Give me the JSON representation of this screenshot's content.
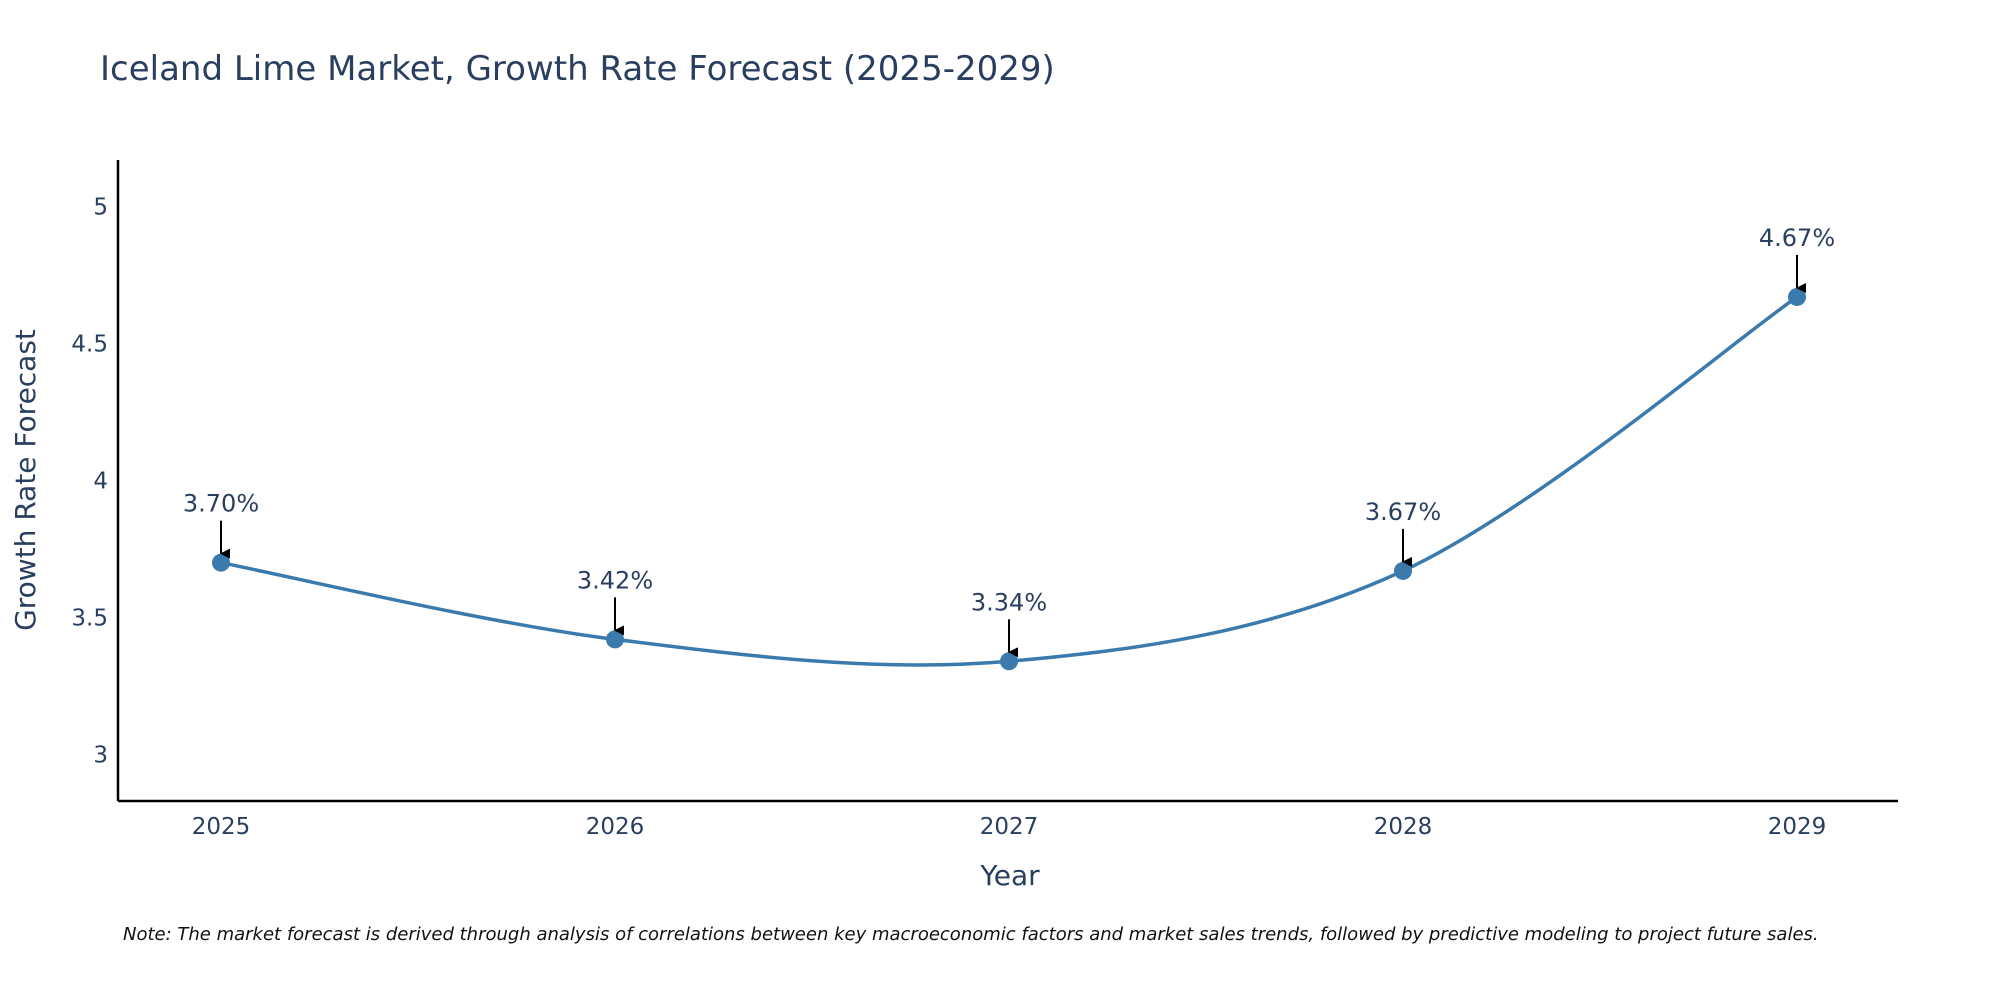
{
  "chart_data": {
    "type": "line",
    "title": "Iceland Lime Market, Growth Rate Forecast (2025-2029)",
    "xlabel": "Year",
    "ylabel": "Growth Rate Forecast",
    "categories": [
      "2025",
      "2026",
      "2027",
      "2028",
      "2029"
    ],
    "series": [
      {
        "name": "Growth Rate Forecast",
        "values": [
          3.7,
          3.42,
          3.34,
          3.67,
          4.67
        ],
        "color": "#3a7aad"
      }
    ],
    "data_labels": [
      "3.70%",
      "3.42%",
      "3.34%",
      "3.67%",
      "4.67%"
    ],
    "ylim": [
      2.83,
      5.17
    ],
    "y_ticks": [
      3,
      3.5,
      4,
      4.5,
      5
    ],
    "y_tick_labels": [
      "3",
      "3.5",
      "4",
      "4.5",
      "5"
    ],
    "grid": false,
    "line_shape": "spline",
    "note": "Note: The market forecast is derived through analysis of correlations between key macroeconomic factors and market sales trends, followed by predictive modeling to project future sales."
  },
  "colors": {
    "line": "#3a7aad",
    "marker": "#3a7aad",
    "axis": "#000000",
    "text": "#2a3f5f",
    "arrow": "#000000"
  }
}
